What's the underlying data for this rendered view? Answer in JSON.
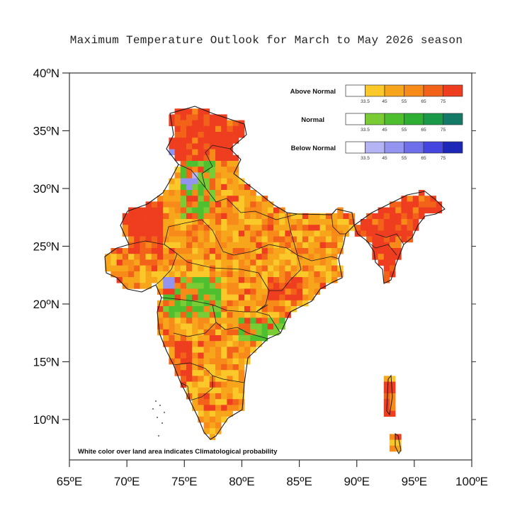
{
  "title": "Maximum Temperature Outlook for March to May 2026 season",
  "axes": {
    "lat_labels": [
      "40ºN",
      "35ºN",
      "30ºN",
      "25ºN",
      "20ºN",
      "15ºN",
      "10ºN"
    ],
    "lat_values": [
      40,
      35,
      30,
      25,
      20,
      15,
      10
    ],
    "lon_labels": [
      "65ºE",
      "70ºE",
      "75ºE",
      "80ºE",
      "85ºE",
      "90ºE",
      "95ºE",
      "100ºE"
    ],
    "lon_values": [
      65,
      70,
      75,
      80,
      85,
      90,
      95,
      100
    ],
    "lat_range": [
      6.5,
      40
    ],
    "lon_range": [
      65,
      100
    ]
  },
  "legend": {
    "thresholds": [
      "33.5",
      "45",
      "55",
      "65",
      "75"
    ],
    "categories": [
      {
        "label": "Above Normal",
        "colors": [
          "#ffffff",
          "#fbc82a",
          "#f7a51b",
          "#f88a19",
          "#f26219",
          "#ee3d1f"
        ]
      },
      {
        "label": "Normal",
        "colors": [
          "#ffffff",
          "#79cc33",
          "#4ebf2e",
          "#2eae32",
          "#1a9a48",
          "#127a66"
        ]
      },
      {
        "label": "Below Normal",
        "colors": [
          "#ffffff",
          "#b4b4f4",
          "#9393f0",
          "#6f6feb",
          "#4545e0",
          "#1c27b8"
        ]
      }
    ]
  },
  "note": "White color over land area indicates Climatological probability"
}
